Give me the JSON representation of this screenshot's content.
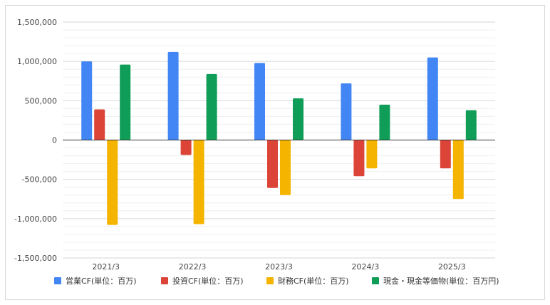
{
  "chart_data": {
    "type": "bar",
    "categories": [
      "2021/3",
      "2022/3",
      "2023/3",
      "2024/3",
      "2025/3"
    ],
    "ylim": [
      -1500000,
      1500000
    ],
    "yticks": [
      1500000,
      1000000,
      500000,
      0,
      -500000,
      -1000000,
      -1500000
    ],
    "ytick_labels": [
      "1,500,000",
      "1,000,000",
      "500,000",
      "0",
      "-500,000",
      "-1,000,000",
      "-1,500,000"
    ],
    "grid": true,
    "legend_position": "bottom",
    "series": [
      {
        "name": "営業CF(単位：百万)",
        "color": "#4285f4",
        "values": [
          1000000,
          1120000,
          980000,
          720000,
          1050000
        ]
      },
      {
        "name": "投資CF(単位：百万)",
        "color": "#db4437",
        "values": [
          390000,
          -190000,
          -610000,
          -460000,
          -360000
        ]
      },
      {
        "name": "財務CF(単位：百万)",
        "color": "#f4b400",
        "values": [
          -1080000,
          -1070000,
          -700000,
          -360000,
          -750000
        ]
      },
      {
        "name": "現金・現金等価物(単位：百万円)",
        "color": "#0f9d58",
        "values": [
          960000,
          840000,
          530000,
          450000,
          380000
        ]
      }
    ]
  }
}
